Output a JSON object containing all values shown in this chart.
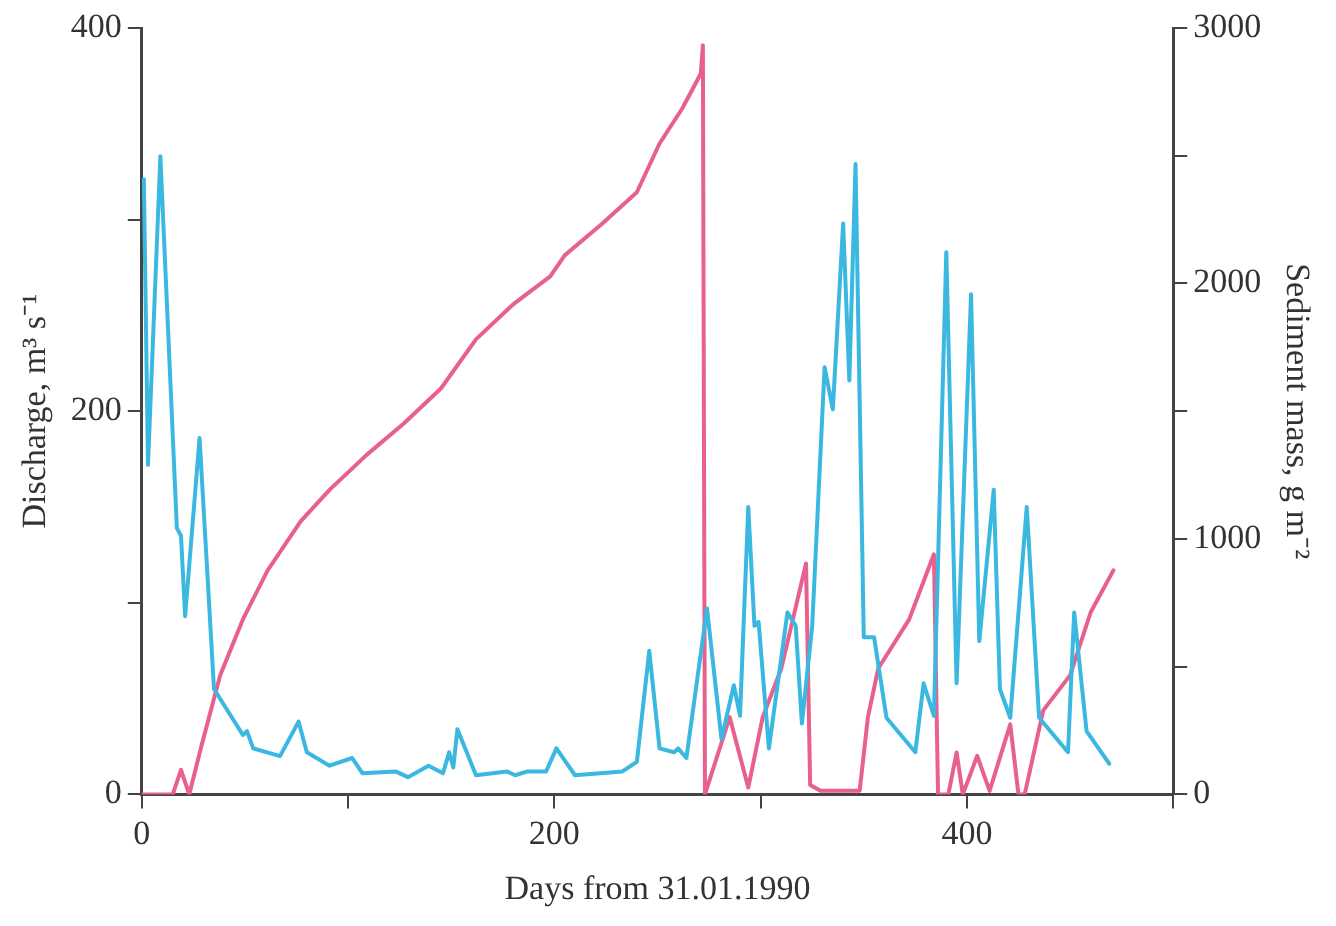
{
  "chart_data": {
    "type": "line",
    "xlabel": "Days from 31.01.1990",
    "ylabel": "Discharge, m³ s⁻¹",
    "y2label": "Sediment mass, g m⁻²",
    "xlim": [
      0,
      500
    ],
    "xticks": [
      0,
      {
        "value": 100,
        "label": null
      },
      200,
      {
        "value": 300,
        "label": null
      },
      400,
      {
        "value": 500,
        "label": null
      }
    ],
    "ylim": [
      0,
      400
    ],
    "yticks": [
      0,
      {
        "value": 100,
        "label": null
      },
      200,
      {
        "value": 300,
        "label": null
      },
      400
    ],
    "y2lim": [
      0,
      3000
    ],
    "y2ticks": [
      0,
      {
        "value": 500,
        "label": null
      },
      1000,
      {
        "value": 1500,
        "label": null
      },
      2000,
      {
        "value": 2500,
        "label": null
      },
      3000
    ],
    "grid": false,
    "legend": false,
    "marker": "none",
    "line_style": "solid",
    "series": [
      {
        "color": "#3bb8e0",
        "axis": "y",
        "x": [
          1,
          3,
          9,
          17,
          19,
          21,
          28,
          35,
          49,
          51,
          54,
          67,
          76,
          80,
          91,
          102,
          107,
          123,
          129,
          139,
          146,
          149,
          151,
          153,
          162,
          177,
          181,
          187,
          196,
          201,
          210,
          233,
          240,
          246,
          251,
          258,
          260,
          264,
          274,
          281,
          287,
          290,
          294,
          297,
          299,
          304,
          313,
          317,
          320,
          325,
          331,
          335,
          340,
          343,
          346,
          350,
          355,
          361,
          375,
          379,
          384,
          390,
          395,
          402,
          406,
          413,
          416,
          421,
          429,
          435,
          449,
          452,
          458,
          469
        ],
        "values": [
          321,
          172,
          333,
          139,
          135,
          93,
          186,
          55,
          31,
          33,
          24,
          20,
          38,
          22,
          15,
          19,
          11,
          12,
          9,
          15,
          11,
          22,
          14,
          34,
          10,
          12,
          10,
          12,
          12,
          24,
          10,
          12,
          17,
          75,
          24,
          22,
          24,
          19,
          97,
          29,
          57,
          41,
          150,
          88,
          90,
          24,
          95,
          88,
          37,
          88,
          223,
          201,
          298,
          216,
          329,
          82,
          82,
          40,
          22,
          58,
          41,
          283,
          58,
          261,
          80,
          159,
          55,
          40,
          150,
          40,
          22,
          95,
          33,
          16
        ]
      },
      {
        "color": "#e8608f",
        "axis": "y2",
        "x": [
          0,
          15,
          19,
          23,
          29,
          38,
          49,
          61,
          77,
          91,
          109,
          127,
          145,
          162,
          180,
          198,
          205,
          223,
          240,
          251,
          262,
          271,
          272,
          273,
          285,
          294,
          301,
          310,
          322,
          324,
          329,
          348,
          352,
          357,
          372,
          384,
          386,
          391,
          395,
          398,
          405,
          411,
          421,
          425,
          428,
          437,
          450,
          460,
          471
        ],
        "values": [
          0,
          0,
          96,
          0,
          192,
          466,
          685,
          877,
          1069,
          1192,
          1329,
          1452,
          1589,
          1781,
          1918,
          2028,
          2110,
          2233,
          2357,
          2548,
          2685,
          2822,
          2932,
          0,
          302,
          27,
          302,
          493,
          904,
          37,
          14,
          14,
          302,
          493,
          685,
          940,
          0,
          0,
          164,
          0,
          151,
          14,
          274,
          0,
          0,
          329,
          466,
          713,
          877
        ]
      }
    ]
  }
}
